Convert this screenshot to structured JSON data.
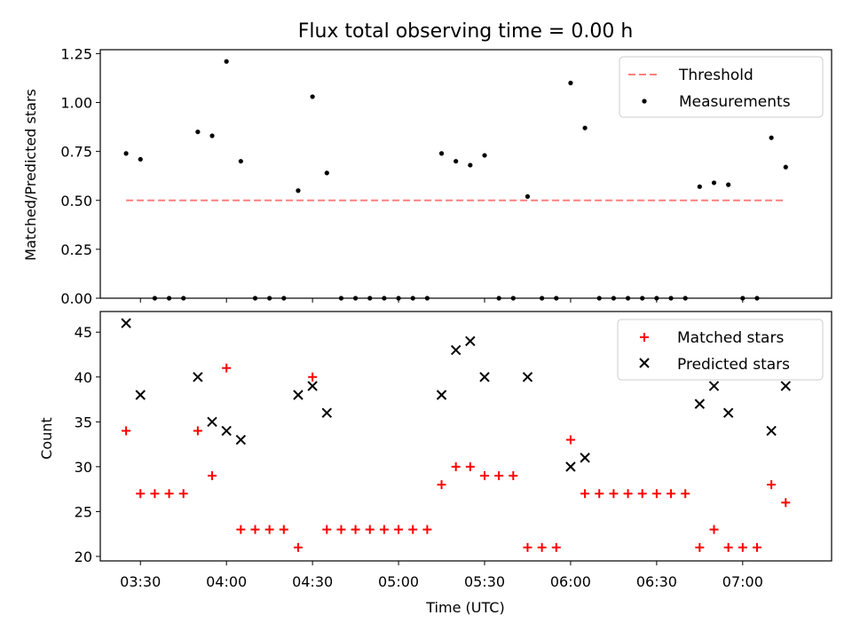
{
  "chart_data": {
    "title": "Flux total observing time = 0.00 h",
    "x_axis": {
      "label": "Time (UTC)",
      "ticks": [
        "03:30",
        "04:00",
        "04:30",
        "05:00",
        "05:30",
        "06:00",
        "06:30",
        "07:00"
      ],
      "range": [
        "03:16",
        "07:31"
      ]
    },
    "panels": [
      {
        "type": "scatter",
        "ylabel": "Matched/Predicted stars",
        "ylim": [
          0,
          1.27
        ],
        "yticks": [
          "0.00",
          "0.25",
          "0.50",
          "0.75",
          "1.00",
          "1.25"
        ],
        "legend": {
          "position": "top-right",
          "entries": [
            "Threshold",
            "Measurements"
          ]
        },
        "threshold": {
          "name": "Threshold",
          "value": 0.5,
          "x_start": "03:25",
          "x_end": "07:15",
          "color": "#ff7f7f"
        },
        "measurements": {
          "name": "Measurements",
          "color": "#000000",
          "points": [
            [
              "03:25",
              0.74
            ],
            [
              "03:30",
              0.71
            ],
            [
              "03:35",
              0.0
            ],
            [
              "03:40",
              0.0
            ],
            [
              "03:45",
              0.0
            ],
            [
              "03:50",
              0.85
            ],
            [
              "03:55",
              0.83
            ],
            [
              "04:00",
              1.21
            ],
            [
              "04:05",
              0.7
            ],
            [
              "04:10",
              0.0
            ],
            [
              "04:15",
              0.0
            ],
            [
              "04:20",
              0.0
            ],
            [
              "04:25",
              0.55
            ],
            [
              "04:30",
              1.03
            ],
            [
              "04:35",
              0.64
            ],
            [
              "04:40",
              0.0
            ],
            [
              "04:45",
              0.0
            ],
            [
              "04:50",
              0.0
            ],
            [
              "04:55",
              0.0
            ],
            [
              "05:00",
              0.0
            ],
            [
              "05:05",
              0.0
            ],
            [
              "05:10",
              0.0
            ],
            [
              "05:15",
              0.74
            ],
            [
              "05:20",
              0.7
            ],
            [
              "05:25",
              0.68
            ],
            [
              "05:30",
              0.73
            ],
            [
              "05:35",
              0.0
            ],
            [
              "05:40",
              0.0
            ],
            [
              "05:45",
              0.52
            ],
            [
              "05:50",
              0.0
            ],
            [
              "05:55",
              0.0
            ],
            [
              "06:00",
              1.1
            ],
            [
              "06:05",
              0.87
            ],
            [
              "06:10",
              0.0
            ],
            [
              "06:15",
              0.0
            ],
            [
              "06:20",
              0.0
            ],
            [
              "06:25",
              0.0
            ],
            [
              "06:30",
              0.0
            ],
            [
              "06:35",
              0.0
            ],
            [
              "06:40",
              0.0
            ],
            [
              "06:45",
              0.57
            ],
            [
              "06:50",
              0.59
            ],
            [
              "06:55",
              0.58
            ],
            [
              "07:00",
              0.0
            ],
            [
              "07:05",
              0.0
            ],
            [
              "07:10",
              0.82
            ],
            [
              "07:15",
              0.67
            ]
          ]
        }
      },
      {
        "type": "scatter",
        "ylabel": "Count",
        "ylim": [
          19.5,
          47.3
        ],
        "yticks": [
          "20",
          "25",
          "30",
          "35",
          "40",
          "45"
        ],
        "legend": {
          "position": "top-right",
          "entries": [
            "Matched stars",
            "Predicted stars"
          ]
        },
        "matched": {
          "name": "Matched stars",
          "color": "#ff0000",
          "marker": "+",
          "points": [
            [
              "03:25",
              34
            ],
            [
              "03:30",
              27
            ],
            [
              "03:35",
              27
            ],
            [
              "03:40",
              27
            ],
            [
              "03:45",
              27
            ],
            [
              "03:50",
              34
            ],
            [
              "03:55",
              29
            ],
            [
              "04:00",
              41
            ],
            [
              "04:05",
              23
            ],
            [
              "04:10",
              23
            ],
            [
              "04:15",
              23
            ],
            [
              "04:20",
              23
            ],
            [
              "04:25",
              21
            ],
            [
              "04:30",
              40
            ],
            [
              "04:35",
              23
            ],
            [
              "04:40",
              23
            ],
            [
              "04:45",
              23
            ],
            [
              "04:50",
              23
            ],
            [
              "04:55",
              23
            ],
            [
              "05:00",
              23
            ],
            [
              "05:05",
              23
            ],
            [
              "05:10",
              23
            ],
            [
              "05:15",
              28
            ],
            [
              "05:20",
              30
            ],
            [
              "05:25",
              30
            ],
            [
              "05:30",
              29
            ],
            [
              "05:35",
              29
            ],
            [
              "05:40",
              29
            ],
            [
              "05:45",
              21
            ],
            [
              "05:50",
              21
            ],
            [
              "05:55",
              21
            ],
            [
              "06:00",
              33
            ],
            [
              "06:05",
              27
            ],
            [
              "06:10",
              27
            ],
            [
              "06:15",
              27
            ],
            [
              "06:20",
              27
            ],
            [
              "06:25",
              27
            ],
            [
              "06:30",
              27
            ],
            [
              "06:35",
              27
            ],
            [
              "06:40",
              27
            ],
            [
              "06:45",
              21
            ],
            [
              "06:50",
              23
            ],
            [
              "06:55",
              21
            ],
            [
              "07:00",
              21
            ],
            [
              "07:05",
              21
            ],
            [
              "07:10",
              28
            ],
            [
              "07:15",
              26
            ]
          ]
        },
        "predicted": {
          "name": "Predicted stars",
          "color": "#000000",
          "marker": "x",
          "points": [
            [
              "03:25",
              46
            ],
            [
              "03:30",
              38
            ],
            [
              "03:50",
              40
            ],
            [
              "03:55",
              35
            ],
            [
              "04:00",
              34
            ],
            [
              "04:05",
              33
            ],
            [
              "04:25",
              38
            ],
            [
              "04:30",
              39
            ],
            [
              "04:35",
              36
            ],
            [
              "05:15",
              38
            ],
            [
              "05:20",
              43
            ],
            [
              "05:25",
              44
            ],
            [
              "05:30",
              40
            ],
            [
              "05:45",
              40
            ],
            [
              "06:00",
              30
            ],
            [
              "06:05",
              31
            ],
            [
              "06:45",
              37
            ],
            [
              "06:50",
              39
            ],
            [
              "06:55",
              36
            ],
            [
              "07:10",
              34
            ],
            [
              "07:15",
              39
            ]
          ]
        }
      }
    ]
  }
}
